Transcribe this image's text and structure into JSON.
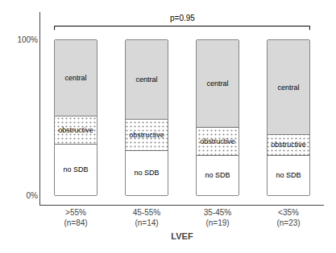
{
  "chart_data": {
    "type": "bar",
    "stacked": true,
    "categories": [
      ">55%\n(n=84)",
      "45-55%\n(n=14)",
      "35-45%\n(n=19)",
      "<35%\n(n=23)"
    ],
    "series": [
      {
        "name": "no SDB",
        "color": "#ffffff",
        "values": [
          33,
          29,
          26,
          26
        ]
      },
      {
        "name": "obstructive",
        "color": "#e0e0e0",
        "values": [
          18,
          20,
          18,
          13
        ]
      },
      {
        "name": "central",
        "color": "#d8d8d8",
        "values": [
          49,
          51,
          56,
          61
        ]
      }
    ],
    "xlabel": "LVEF",
    "annotations": [
      "p=0.95"
    ],
    "ylim": [
      -6,
      118
    ],
    "yticks": [
      {
        "value": 0,
        "label": "0%"
      },
      {
        "value": 100,
        "label": "100%"
      }
    ],
    "grid": false
  }
}
